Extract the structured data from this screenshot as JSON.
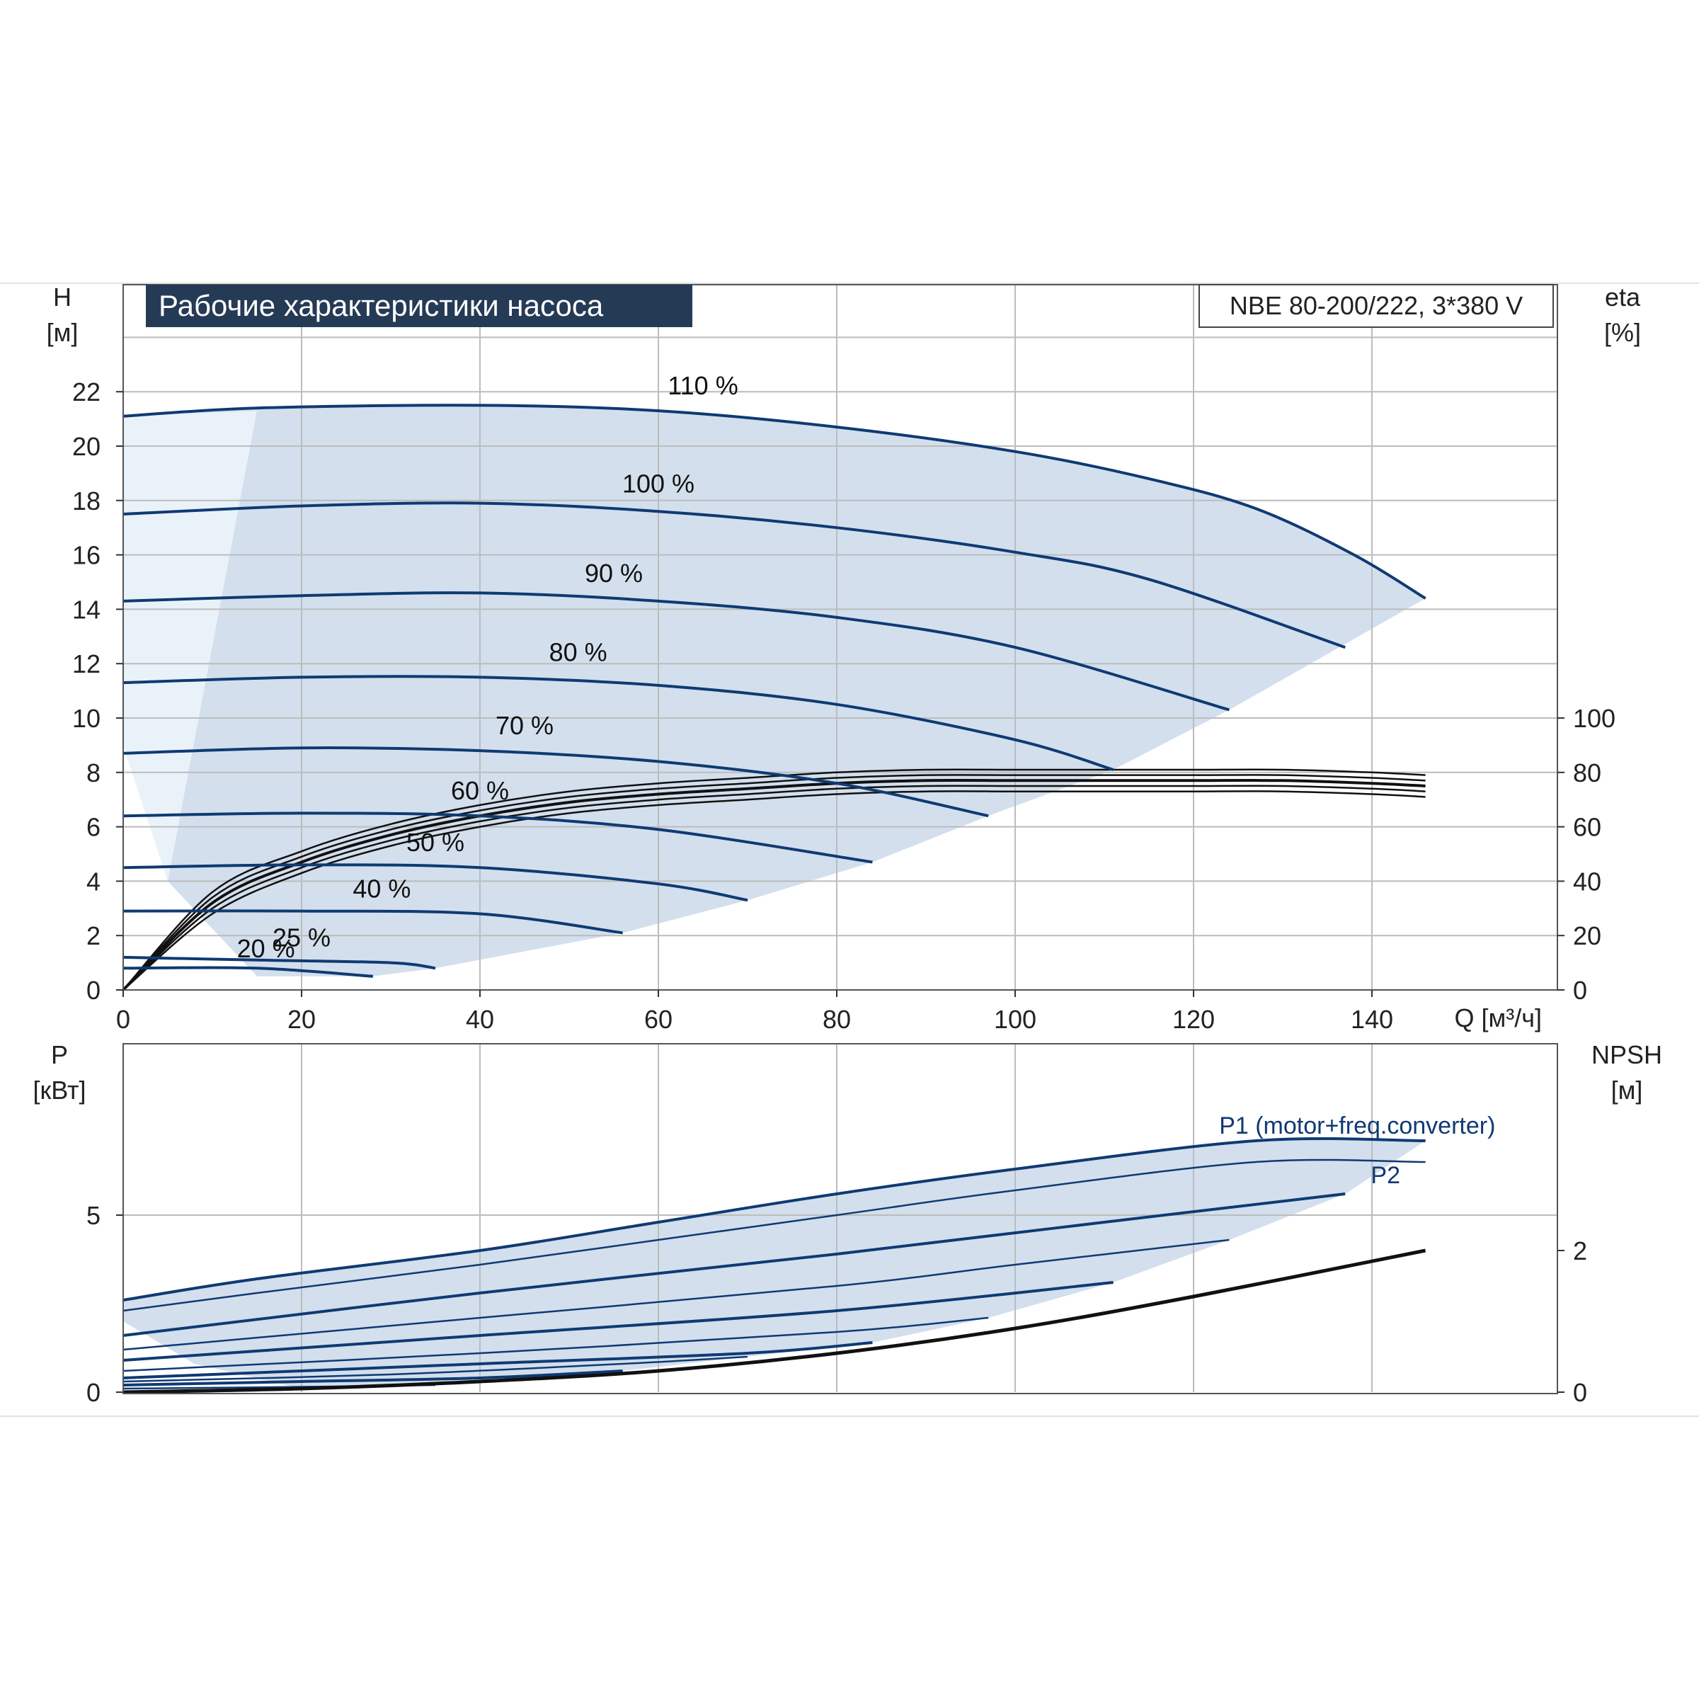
{
  "colors": {
    "curve_blue": "#0f3a73",
    "area_fill": "#d3dfed",
    "area_fill_light": "#eaf2f9",
    "grid": "#bcbcbc",
    "efficiency": "#111111",
    "title_bg": "#253a55",
    "title_fg": "#ffffff"
  },
  "chart_data": [
    {
      "type": "line",
      "title": "Рабочие характеристики насоса",
      "model_label": "NBE 80-200/222, 3*380 V",
      "xlabel": "Q [м³/ч]",
      "ylabel": "H",
      "ylabel_unit": "[м]",
      "y2label": "eta",
      "y2label_unit": "[%]",
      "xlim": [
        0,
        160
      ],
      "ylim": [
        0,
        24
      ],
      "y2lim": [
        0,
        100
      ],
      "x_ticks": [
        "0",
        "20",
        "40",
        "60",
        "80",
        "100",
        "120",
        "140"
      ],
      "y_ticks": [
        "0",
        "2",
        "4",
        "6",
        "8",
        "10",
        "12",
        "14",
        "16",
        "18",
        "20",
        "22"
      ],
      "y2_ticks": [
        "0",
        "20",
        "40",
        "60",
        "80",
        "100"
      ],
      "grid": true,
      "series": [
        {
          "name": "110 %",
          "x": [
            0,
            15,
            40,
            60,
            80,
            100,
            115,
            127,
            138,
            146
          ],
          "values": [
            21.1,
            21.4,
            21.5,
            21.3,
            20.7,
            19.8,
            18.8,
            17.7,
            16.0,
            14.4
          ]
        },
        {
          "name": "100 %",
          "x": [
            0,
            20,
            40,
            60,
            80,
            100,
            115,
            137
          ],
          "values": [
            17.5,
            17.8,
            17.9,
            17.6,
            17.0,
            16.1,
            15.1,
            12.6
          ]
        },
        {
          "name": "90 %",
          "x": [
            0,
            20,
            40,
            60,
            80,
            100,
            124
          ],
          "values": [
            14.3,
            14.5,
            14.6,
            14.3,
            13.7,
            12.6,
            10.3
          ]
        },
        {
          "name": "80 %",
          "x": [
            0,
            20,
            40,
            60,
            80,
            100,
            111
          ],
          "values": [
            11.3,
            11.5,
            11.5,
            11.2,
            10.5,
            9.2,
            8.1
          ]
        },
        {
          "name": "70 %",
          "x": [
            0,
            20,
            40,
            60,
            80,
            97
          ],
          "values": [
            8.7,
            8.9,
            8.8,
            8.4,
            7.6,
            6.4
          ]
        },
        {
          "name": "60 %",
          "x": [
            0,
            20,
            40,
            60,
            84
          ],
          "values": [
            6.4,
            6.5,
            6.4,
            5.9,
            4.7
          ]
        },
        {
          "name": "50 %",
          "x": [
            0,
            20,
            40,
            60,
            70
          ],
          "values": [
            4.5,
            4.6,
            4.5,
            3.9,
            3.3
          ]
        },
        {
          "name": "40 %",
          "x": [
            0,
            20,
            40,
            56
          ],
          "values": [
            2.9,
            2.9,
            2.8,
            2.1
          ]
        },
        {
          "name": "25 %",
          "x": [
            0,
            15,
            30,
            35
          ],
          "values": [
            1.2,
            1.1,
            1.0,
            0.8
          ]
        },
        {
          "name": "20 %",
          "x": [
            0,
            15,
            28
          ],
          "values": [
            0.8,
            0.8,
            0.5
          ]
        }
      ],
      "curve_labels": [
        {
          "text": "110 %",
          "x": 65,
          "y": 21.9
        },
        {
          "text": "100 %",
          "x": 60,
          "y": 18.3
        },
        {
          "text": "90 %",
          "x": 55,
          "y": 15.0
        },
        {
          "text": "80 %",
          "x": 51,
          "y": 12.1
        },
        {
          "text": "70 %",
          "x": 45,
          "y": 9.4
        },
        {
          "text": "60 %",
          "x": 40,
          "y": 7.0
        },
        {
          "text": "50 %",
          "x": 35,
          "y": 5.1
        },
        {
          "text": "40 %",
          "x": 29,
          "y": 3.4
        },
        {
          "text": "25 %",
          "x": 20,
          "y": 1.6
        },
        {
          "text": "20 %",
          "x": 16,
          "y": 1.2
        }
      ],
      "envelope": {
        "upper_x": [
          0,
          15,
          40,
          60,
          80,
          100,
          115,
          127,
          138,
          146
        ],
        "upper_y": [
          21.1,
          21.4,
          21.5,
          21.3,
          20.7,
          19.8,
          18.8,
          17.7,
          16.0,
          14.4
        ],
        "lower_x": [
          146,
          124,
          111,
          97,
          84,
          70,
          56,
          35,
          28,
          15,
          5,
          0
        ],
        "lower_y": [
          14.4,
          10.3,
          8.1,
          6.4,
          4.7,
          3.3,
          2.1,
          0.8,
          0.5,
          0.5,
          4.0,
          9.0
        ]
      },
      "efficiency": {
        "x": [
          0,
          10,
          20,
          30,
          40,
          50,
          60,
          70,
          80,
          90,
          100,
          110,
          120,
          130,
          140,
          146
        ],
        "values": [
          0,
          32,
          47,
          57,
          64,
          69,
          72,
          74,
          76,
          77,
          77,
          77,
          77,
          77,
          76,
          75
        ]
      }
    },
    {
      "type": "line",
      "ylabel": "P",
      "ylabel_unit": "[кВт]",
      "y2label": "NPSH",
      "y2label_unit": "[м]",
      "xlim": [
        0,
        160
      ],
      "ylim": [
        0,
        8.8
      ],
      "y2lim": [
        0,
        4.4
      ],
      "y_ticks": [
        "0",
        "5"
      ],
      "y2_ticks": [
        "0",
        "2"
      ],
      "grid": true,
      "series": [
        {
          "name": "P1 (motor+freq.converter)",
          "x": [
            0,
            15,
            40,
            60,
            80,
            100,
            127,
            146
          ],
          "values": [
            2.6,
            3.2,
            4.0,
            4.8,
            5.6,
            6.3,
            7.1,
            7.1
          ]
        },
        {
          "name": "P2",
          "x": [
            0,
            15,
            40,
            60,
            80,
            100,
            127,
            146
          ],
          "values": [
            2.3,
            2.8,
            3.6,
            4.3,
            5.0,
            5.7,
            6.5,
            6.5
          ]
        },
        {
          "x": [
            0,
            40,
            80,
            110,
            137
          ],
          "values": [
            1.6,
            2.8,
            3.9,
            4.8,
            5.6
          ]
        },
        {
          "x": [
            0,
            40,
            80,
            100,
            124
          ],
          "values": [
            1.2,
            2.1,
            3.0,
            3.6,
            4.3
          ]
        },
        {
          "x": [
            0,
            40,
            80,
            111
          ],
          "values": [
            0.9,
            1.6,
            2.3,
            3.1
          ]
        },
        {
          "x": [
            0,
            40,
            80,
            97
          ],
          "values": [
            0.6,
            1.1,
            1.7,
            2.1
          ]
        },
        {
          "x": [
            0,
            40,
            70,
            84
          ],
          "values": [
            0.4,
            0.8,
            1.1,
            1.4
          ]
        },
        {
          "x": [
            0,
            30,
            56,
            70
          ],
          "values": [
            0.3,
            0.5,
            0.8,
            1.0
          ]
        },
        {
          "x": [
            0,
            20,
            40,
            56
          ],
          "values": [
            0.2,
            0.3,
            0.4,
            0.6
          ]
        },
        {
          "x": [
            0,
            20,
            35
          ],
          "values": [
            0.1,
            0.15,
            0.2
          ]
        }
      ],
      "series_labels": [
        {
          "text": "P1 (motor+freq.converter)",
          "x": 127,
          "y": 7.3
        },
        {
          "text": "P2",
          "x": 144,
          "y": 5.9
        }
      ],
      "envelope": {
        "upper_x": [
          0,
          15,
          40,
          60,
          80,
          100,
          127,
          146
        ],
        "upper_y": [
          2.6,
          3.2,
          4.0,
          4.8,
          5.6,
          6.3,
          7.1,
          7.1
        ],
        "lower_x": [
          146,
          137,
          124,
          111,
          97,
          84,
          70,
          56,
          35,
          20,
          8,
          0
        ],
        "lower_y": [
          7.1,
          5.6,
          4.3,
          3.1,
          2.1,
          1.4,
          1.0,
          0.6,
          0.2,
          0.1,
          0.8,
          2.0
        ]
      },
      "npsh": {
        "x": [
          0,
          20,
          40,
          60,
          80,
          100,
          120,
          146
        ],
        "values": [
          0.0,
          0.05,
          0.15,
          0.3,
          0.55,
          0.9,
          1.35,
          2.0
        ]
      }
    }
  ]
}
